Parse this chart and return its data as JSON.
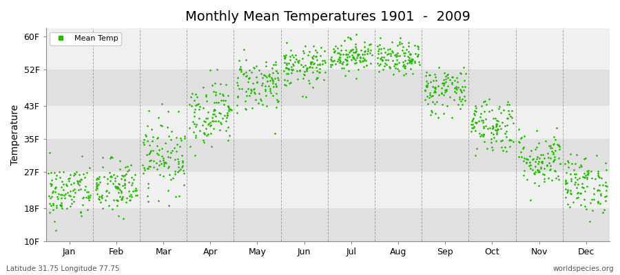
{
  "title": "Monthly Mean Temperatures 1901  -  2009",
  "ylabel": "Temperature",
  "yticks": [
    10,
    18,
    27,
    35,
    43,
    52,
    60
  ],
  "ytick_labels": [
    "10F",
    "18F",
    "27F",
    "35F",
    "43F",
    "52F",
    "60F"
  ],
  "ylim": [
    10,
    62
  ],
  "months": [
    "Jan",
    "Feb",
    "Mar",
    "Apr",
    "May",
    "Jun",
    "Jul",
    "Aug",
    "Sep",
    "Oct",
    "Nov",
    "Dec"
  ],
  "mean_temps_f": [
    22.0,
    23.0,
    31.0,
    41.5,
    48.5,
    52.5,
    55.5,
    54.5,
    47.0,
    38.5,
    30.0,
    24.0
  ],
  "std_temps_f": [
    3.5,
    3.5,
    4.5,
    4.0,
    3.5,
    2.5,
    2.0,
    2.0,
    3.0,
    3.5,
    3.5,
    3.5
  ],
  "n_years": 109,
  "dot_color": "#22bb00",
  "dot_size": 3,
  "dot_marker": "D",
  "figure_bg": "#ffffff",
  "plot_bg_light": "#f0f0f0",
  "plot_bg_dark": "#e0e0e0",
  "grid_color": "#888888",
  "title_fontsize": 14,
  "axis_fontsize": 10,
  "tick_fontsize": 9,
  "footer_left": "Latitude 31.75 Longitude 77.75",
  "footer_right": "worldspecies.org",
  "legend_label": "Mean Temp",
  "seed": 42
}
